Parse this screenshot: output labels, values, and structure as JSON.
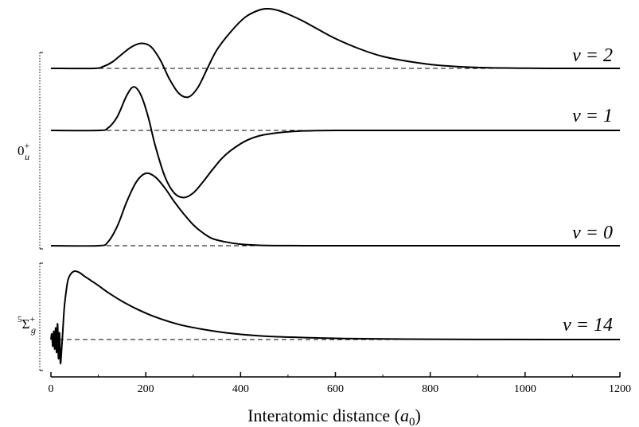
{
  "chart_data": {
    "type": "line",
    "xlabel_prefix": "Interatomic distance (",
    "xlabel_var": "a",
    "xlabel_sub": "0",
    "xlabel_suffix": ")",
    "xlim": [
      0,
      1200
    ],
    "xticks": [
      0,
      200,
      400,
      600,
      800,
      1000,
      1200
    ],
    "grid": false,
    "states": [
      {
        "label_main": "0",
        "label_sup": "+",
        "label_sub": "u",
        "series": [
          {
            "name": "v = 2",
            "baseline": 0,
            "x": [
              0,
              90,
              110,
              130,
              150,
              170,
              190,
              210,
              230,
              250,
              270,
              290,
              310,
              330,
              350,
              380,
              410,
              440,
              460,
              480,
              500,
              530,
              560,
              600,
              650,
              700,
              760,
              820,
              900,
              1000,
              1100,
              1200
            ],
            "y": [
              0,
              0,
              0.03,
              0.11,
              0.24,
              0.36,
              0.42,
              0.37,
              0.15,
              -0.18,
              -0.42,
              -0.48,
              -0.32,
              0,
              0.31,
              0.62,
              0.86,
              0.98,
              1.0,
              0.97,
              0.91,
              0.8,
              0.67,
              0.5,
              0.33,
              0.2,
              0.11,
              0.05,
              0.015,
              0.003,
              0,
              0
            ]
          },
          {
            "name": "v = 1",
            "baseline": 0,
            "x": [
              0,
              100,
              120,
              140,
              160,
              175,
              190,
              205,
              220,
              240,
              260,
              280,
              300,
              320,
              340,
              360,
              380,
              410,
              440,
              480,
              520,
              560,
              600,
              700,
              800,
              1000,
              1200
            ],
            "y": [
              0,
              0,
              0.03,
              0.18,
              0.46,
              0.57,
              0.46,
              0.18,
              -0.2,
              -0.6,
              -0.82,
              -0.88,
              -0.82,
              -0.68,
              -0.52,
              -0.37,
              -0.26,
              -0.14,
              -0.07,
              -0.03,
              -0.01,
              -0.003,
              0,
              0,
              0,
              0,
              0
            ]
          },
          {
            "name": "v = 0",
            "baseline": 0,
            "x": [
              0,
              100,
              120,
              140,
              160,
              180,
              200,
              220,
              240,
              260,
              280,
              300,
              320,
              340,
              370,
              400,
              440,
              500,
              600,
              800,
              1000,
              1200
            ],
            "y": [
              0,
              0,
              0.05,
              0.27,
              0.61,
              0.88,
              1.0,
              0.95,
              0.8,
              0.61,
              0.44,
              0.29,
              0.18,
              0.1,
              0.05,
              0.02,
              0.006,
              0.001,
              0,
              0,
              0,
              0
            ]
          }
        ]
      },
      {
        "label_main": "Σ",
        "label_pre": "5",
        "label_sup": "+",
        "label_sub": "g",
        "series": [
          {
            "name": "v = 14",
            "baseline": 0,
            "x": [
              0,
              2,
              4,
              6,
              8,
              10,
              12,
              14,
              16,
              18,
              20,
              22,
              25,
              28,
              32,
              36,
              42,
              50,
              60,
              70,
              85,
              100,
              120,
              150,
              180,
              220,
              270,
              320,
              380,
              450,
              530,
              620,
              750,
              900,
              1050,
              1200
            ],
            "y": [
              0,
              0.08,
              -0.1,
              0.12,
              -0.14,
              0.17,
              -0.19,
              0.23,
              -0.28,
              0.1,
              -0.34,
              -0.2,
              0.12,
              0.45,
              0.7,
              0.87,
              0.96,
              1.0,
              0.98,
              0.93,
              0.86,
              0.79,
              0.69,
              0.56,
              0.45,
              0.33,
              0.22,
              0.15,
              0.09,
              0.05,
              0.03,
              0.015,
              0.006,
              0.002,
              0,
              0
            ]
          }
        ]
      }
    ],
    "curve_labels": [
      "v = 2",
      "v = 1",
      "v = 0",
      "v = 14"
    ]
  }
}
